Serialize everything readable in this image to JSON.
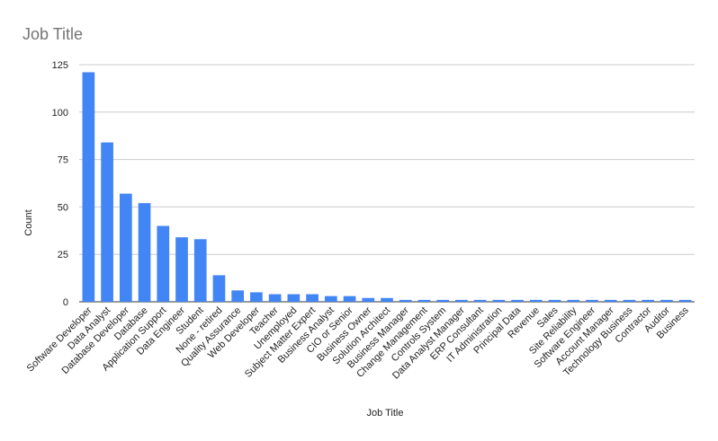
{
  "chart_data": {
    "type": "bar",
    "title": "Job Title",
    "x_label": "Job Title",
    "y_label": "Count",
    "categories": [
      "Software Developer",
      "Data Analyst",
      "Database Developer",
      "Database",
      "Application Support",
      "Data Engineer",
      "Student",
      "None - retired",
      "Quality Assurance",
      "Web Developer",
      "Teacher",
      "Unemployed",
      "Subject Matter Expert",
      "Business Analyst",
      "CIO or Senior",
      "Business Owner",
      "Solution Architect",
      "Business Manager",
      "Change Management",
      "Controls System",
      "Data Analyst Manager",
      "ERP Consultant",
      "IT Administration",
      "Principal Data",
      "Revenue",
      "Sales",
      "Site Reliability",
      "Software Engineer",
      "Account Manager",
      "Technology Business",
      "Contractor",
      "Auditor",
      "Business"
    ],
    "values": [
      121,
      84,
      57,
      52,
      40,
      34,
      33,
      14,
      6,
      5,
      4,
      4,
      4,
      3,
      3,
      2,
      2,
      1,
      1,
      1,
      1,
      1,
      1,
      1,
      1,
      1,
      1,
      1,
      1,
      1,
      1,
      1,
      1
    ],
    "color": "#4285f4",
    "ylim": [
      0,
      125
    ],
    "yticks": [
      0,
      25,
      50,
      75,
      100,
      125
    ],
    "grid": true
  }
}
